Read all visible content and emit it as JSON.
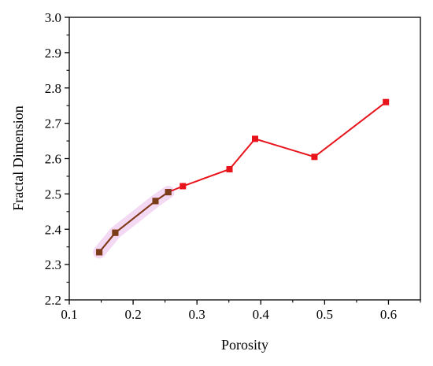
{
  "chart_data": {
    "type": "line",
    "xlabel": "Porosity",
    "ylabel": "Fractal Dimension",
    "xlim": [
      0.1,
      0.65
    ],
    "ylim": [
      2.2,
      3.0
    ],
    "xticks": [
      "0.1",
      "0.2",
      "0.3",
      "0.4",
      "0.5",
      "0.6"
    ],
    "yticks": [
      "2.2",
      "2.3",
      "2.4",
      "2.5",
      "2.6",
      "2.7",
      "2.8",
      "2.9",
      "3.0"
    ],
    "grid": false,
    "series": [
      {
        "color": "#e8141c",
        "marker": "square",
        "x": [
          0.147,
          0.172,
          0.235,
          0.255,
          0.278,
          0.351,
          0.391,
          0.484,
          0.596
        ],
        "y": [
          2.335,
          2.39,
          2.48,
          2.505,
          2.522,
          2.57,
          2.656,
          2.605,
          2.76
        ]
      },
      {
        "color": "#7a3d1a",
        "marker": "square",
        "x": [
          0.147,
          0.172,
          0.235,
          0.255
        ],
        "y": [
          2.335,
          2.39,
          2.48,
          2.505
        ]
      }
    ],
    "highlight_color": "#f3d9f3"
  }
}
